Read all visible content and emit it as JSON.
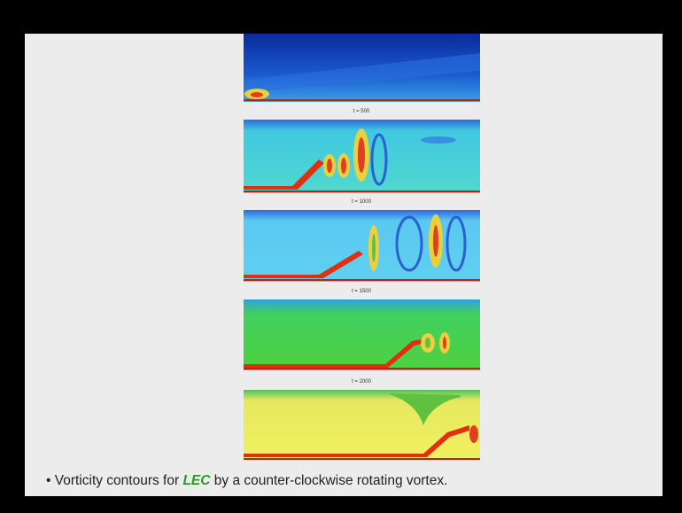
{
  "panels": [
    {
      "title": "t = 500"
    },
    {
      "title": "t = 1000"
    },
    {
      "title": "t = 1500"
    },
    {
      "title": "t = 2000"
    }
  ],
  "caption": {
    "prefix": "• Vorticity contours for ",
    "highlight": "LEC",
    "suffix": " by a counter-clockwise rotating vortex."
  }
}
